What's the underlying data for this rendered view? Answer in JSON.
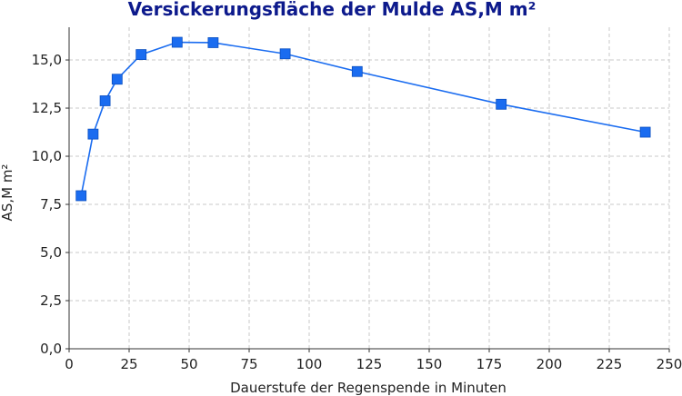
{
  "chart_data": {
    "type": "line",
    "title": "Versickerungsfläche der Mulde AS,M m²",
    "xlabel": "Dauerstufe der Regenspende in Minuten",
    "ylabel": "AS,M  m²",
    "xlim": [
      0,
      250
    ],
    "ylim": [
      0,
      16.7
    ],
    "x_ticks": [
      0,
      25,
      50,
      75,
      100,
      125,
      150,
      175,
      200,
      225,
      250
    ],
    "y_ticks": [
      "0,0",
      "2,5",
      "5,0",
      "7,5",
      "10,0",
      "12,5",
      "15,0"
    ],
    "y_tick_values": [
      0,
      2.5,
      5,
      7.5,
      10,
      12.5,
      15
    ],
    "grid": true,
    "series": [
      {
        "color": "#1a6cf0",
        "marker": "square",
        "x": [
          5,
          10,
          15,
          20,
          30,
          45,
          60,
          90,
          120,
          180,
          240
        ],
        "y": [
          7.95,
          11.15,
          12.88,
          14.0,
          15.28,
          15.92,
          15.9,
          15.32,
          14.4,
          12.7,
          11.25
        ]
      }
    ]
  }
}
